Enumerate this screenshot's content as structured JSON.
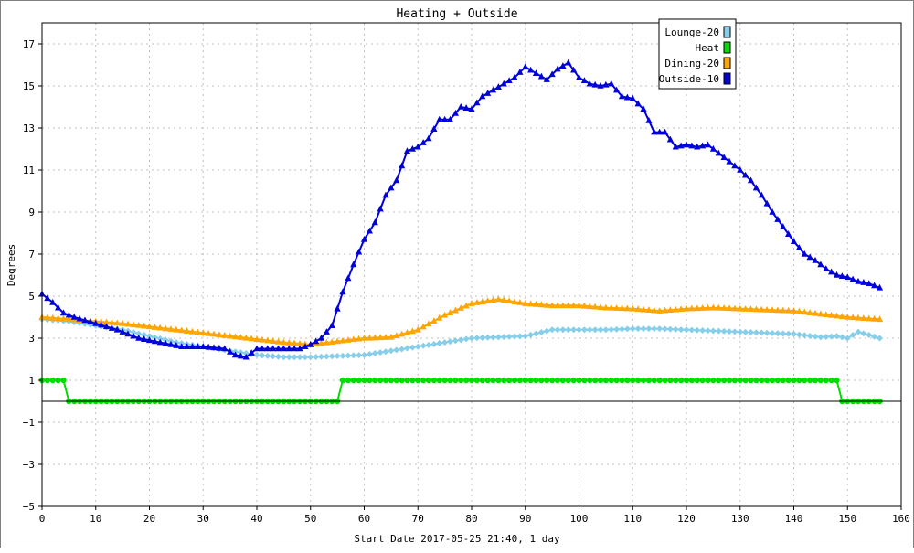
{
  "chart_data": {
    "type": "line",
    "title": "Heating + Outside",
    "xlabel": "Start Date 2017-05-25 21:40, 1 day",
    "ylabel": "Degrees",
    "xlim": [
      0,
      160
    ],
    "ylim": [
      -5,
      18
    ],
    "x_ticks": [
      0,
      10,
      20,
      30,
      40,
      50,
      60,
      70,
      80,
      90,
      100,
      110,
      120,
      130,
      140,
      150,
      160
    ],
    "y_ticks": [
      -5,
      -3,
      -1,
      1,
      3,
      5,
      7,
      9,
      11,
      13,
      15,
      17
    ],
    "grid": true,
    "legend_position": "top-right",
    "zero_line": true,
    "series": [
      {
        "name": "Lounge-20",
        "color": "#87ceeb",
        "marker": "diamond",
        "x": [
          0,
          5,
          10,
          15,
          20,
          25,
          30,
          35,
          40,
          45,
          50,
          55,
          60,
          65,
          70,
          75,
          80,
          85,
          90,
          95,
          100,
          105,
          110,
          115,
          120,
          125,
          130,
          135,
          140,
          145,
          148,
          150,
          152,
          156
        ],
        "y": [
          3.9,
          3.8,
          3.6,
          3.4,
          3.1,
          2.8,
          2.6,
          2.4,
          2.2,
          2.1,
          2.1,
          2.15,
          2.2,
          2.4,
          2.6,
          2.8,
          3.0,
          3.05,
          3.1,
          3.4,
          3.4,
          3.4,
          3.45,
          3.45,
          3.4,
          3.35,
          3.3,
          3.25,
          3.2,
          3.05,
          3.1,
          3.0,
          3.3,
          3.0
        ]
      },
      {
        "name": "Heat",
        "color": "#00dd00",
        "marker": "circle",
        "x": [
          0,
          4,
          5,
          55,
          56,
          148,
          149,
          156
        ],
        "y": [
          1,
          1,
          0,
          0,
          1,
          1,
          0,
          0
        ]
      },
      {
        "name": "Dining-20",
        "color": "#ffa500",
        "marker": "triangle",
        "x": [
          0,
          5,
          10,
          15,
          20,
          25,
          30,
          35,
          40,
          45,
          50,
          55,
          60,
          65,
          70,
          75,
          80,
          85,
          90,
          95,
          100,
          105,
          110,
          115,
          120,
          125,
          130,
          135,
          140,
          145,
          150,
          156
        ],
        "y": [
          4.0,
          3.9,
          3.8,
          3.7,
          3.55,
          3.4,
          3.25,
          3.1,
          2.95,
          2.8,
          2.7,
          2.85,
          3.0,
          3.05,
          3.4,
          4.1,
          4.65,
          4.85,
          4.65,
          4.55,
          4.55,
          4.45,
          4.4,
          4.3,
          4.4,
          4.45,
          4.4,
          4.35,
          4.3,
          4.15,
          4.0,
          3.9
        ]
      },
      {
        "name": "Outside-10",
        "color": "#0000dd",
        "marker": "triangle",
        "x": [
          0,
          2,
          4,
          6,
          10,
          14,
          18,
          22,
          26,
          30,
          34,
          36,
          38,
          40,
          44,
          48,
          50,
          52,
          54,
          56,
          58,
          60,
          62,
          64,
          66,
          68,
          70,
          72,
          74,
          76,
          78,
          80,
          82,
          84,
          86,
          88,
          90,
          92,
          94,
          96,
          98,
          100,
          102,
          104,
          106,
          108,
          110,
          112,
          114,
          116,
          118,
          120,
          122,
          124,
          126,
          128,
          130,
          132,
          134,
          136,
          138,
          140,
          142,
          144,
          146,
          148,
          150,
          152,
          154,
          156
        ],
        "y": [
          5.1,
          4.7,
          4.2,
          4.0,
          3.7,
          3.4,
          3.0,
          2.8,
          2.6,
          2.6,
          2.5,
          2.2,
          2.1,
          2.5,
          2.5,
          2.5,
          2.7,
          3.0,
          3.6,
          5.2,
          6.5,
          7.7,
          8.5,
          9.8,
          10.5,
          11.9,
          12.1,
          12.5,
          13.4,
          13.4,
          14.0,
          13.9,
          14.5,
          14.8,
          15.1,
          15.4,
          15.9,
          15.6,
          15.3,
          15.8,
          16.1,
          15.4,
          15.1,
          15.0,
          15.1,
          14.5,
          14.4,
          13.9,
          12.8,
          12.8,
          12.1,
          12.2,
          12.1,
          12.2,
          11.8,
          11.4,
          11.0,
          10.5,
          9.8,
          9.0,
          8.3,
          7.6,
          7.0,
          6.7,
          6.3,
          6.0,
          5.9,
          5.7,
          5.6,
          5.4
        ]
      }
    ]
  }
}
